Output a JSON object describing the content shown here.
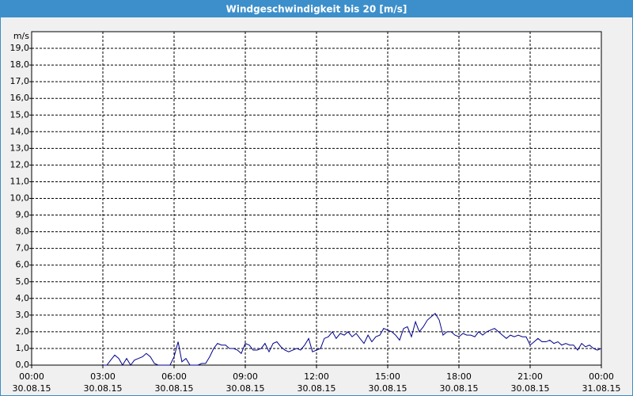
{
  "chart_data": {
    "type": "line",
    "title": "Windgeschwindigkeit bis 20 [m/s]",
    "y_unit": "m/s",
    "xlim": [
      0,
      24
    ],
    "ylim": [
      0,
      20
    ],
    "grid": true,
    "xticks": [
      {
        "value": 0,
        "label": "00:00"
      },
      {
        "value": 3,
        "label": "03:00"
      },
      {
        "value": 6,
        "label": "06:00"
      },
      {
        "value": 9,
        "label": "09:00"
      },
      {
        "value": 12,
        "label": "12:00"
      },
      {
        "value": 15,
        "label": "15:00"
      },
      {
        "value": 18,
        "label": "18:00"
      },
      {
        "value": 21,
        "label": "21:00"
      },
      {
        "value": 24,
        "label": "00:00"
      }
    ],
    "xtick_dates": [
      "30.08.15",
      "30.08.15",
      "30.08.15",
      "30.08.15",
      "30.08.15",
      "30.08.15",
      "30.08.15",
      "30.08.15",
      "31.08.15"
    ],
    "yticks": [
      {
        "value": 0,
        "label": "0,0"
      },
      {
        "value": 1,
        "label": "1,0"
      },
      {
        "value": 2,
        "label": "2,0"
      },
      {
        "value": 3,
        "label": "3,0"
      },
      {
        "value": 4,
        "label": "4,0"
      },
      {
        "value": 5,
        "label": "5,0"
      },
      {
        "value": 6,
        "label": "6,0"
      },
      {
        "value": 7,
        "label": "7,0"
      },
      {
        "value": 8,
        "label": "8,0"
      },
      {
        "value": 9,
        "label": "9,0"
      },
      {
        "value": 10,
        "label": "10,0"
      },
      {
        "value": 11,
        "label": "11,0"
      },
      {
        "value": 12,
        "label": "12,0"
      },
      {
        "value": 13,
        "label": "13,0"
      },
      {
        "value": 14,
        "label": "14,0"
      },
      {
        "value": 15,
        "label": "15,0"
      },
      {
        "value": 16,
        "label": "16,0"
      },
      {
        "value": 17,
        "label": "17,0"
      },
      {
        "value": 18,
        "label": "18,0"
      },
      {
        "value": 19,
        "label": "19,0"
      }
    ],
    "color": "#00008b",
    "x": [
      3,
      3.17,
      3.33,
      3.5,
      3.67,
      3.83,
      4,
      4.17,
      4.33,
      4.5,
      4.67,
      4.83,
      5,
      5.17,
      5.33,
      5.5,
      5.67,
      5.83,
      6,
      6.17,
      6.33,
      6.5,
      6.67,
      6.83,
      7,
      7.17,
      7.33,
      7.5,
      7.67,
      7.83,
      8,
      8.17,
      8.33,
      8.5,
      8.67,
      8.83,
      9,
      9.17,
      9.33,
      9.5,
      9.67,
      9.83,
      10,
      10.17,
      10.33,
      10.5,
      10.67,
      10.83,
      11,
      11.17,
      11.33,
      11.5,
      11.67,
      11.83,
      12,
      12.17,
      12.33,
      12.5,
      12.67,
      12.83,
      13,
      13.17,
      13.33,
      13.5,
      13.67,
      13.83,
      14,
      14.17,
      14.33,
      14.5,
      14.67,
      14.83,
      15,
      15.17,
      15.33,
      15.5,
      15.67,
      15.83,
      16,
      16.17,
      16.33,
      16.5,
      16.67,
      16.83,
      17,
      17.17,
      17.33,
      17.5,
      17.67,
      17.83,
      18,
      18.17,
      18.33,
      18.5,
      18.67,
      18.83,
      19,
      19.17,
      19.33,
      19.5,
      19.67,
      19.83,
      20,
      20.17,
      20.33,
      20.5,
      20.67,
      20.83,
      21,
      21.17,
      21.33,
      21.5,
      21.67,
      21.83,
      22,
      22.17,
      22.33,
      22.5,
      22.67,
      22.83,
      23,
      23.17,
      23.33,
      23.5,
      23.67,
      23.83,
      24
    ],
    "values": [
      0,
      0,
      0.3,
      0.6,
      0.4,
      0,
      0.4,
      0,
      0.3,
      0.4,
      0.5,
      0.7,
      0.5,
      0.1,
      0,
      0,
      0,
      0,
      0.5,
      1.4,
      0.2,
      0.4,
      0,
      0,
      0,
      0.1,
      0.1,
      0.5,
      1.0,
      1.3,
      1.2,
      1.2,
      1.0,
      1.0,
      0.9,
      0.7,
      1.3,
      1.2,
      0.9,
      0.9,
      1.0,
      1.3,
      0.8,
      1.3,
      1.4,
      1.1,
      0.9,
      0.8,
      0.9,
      1.0,
      0.9,
      1.2,
      1.6,
      0.8,
      0.9,
      1.0,
      1.6,
      1.7,
      2.0,
      1.6,
      1.9,
      1.8,
      2.0,
      1.7,
      1.9,
      1.6,
      1.3,
      1.8,
      1.4,
      1.7,
      1.8,
      2.2,
      2.1,
      2.0,
      1.8,
      1.5,
      2.2,
      2.3,
      1.7,
      2.6,
      2.0,
      2.3,
      2.7,
      2.9,
      3.1,
      2.7,
      1.8,
      2.0,
      2.0,
      1.8,
      1.7,
      1.9,
      1.8,
      1.8,
      1.7,
      2.0,
      1.8,
      2.0,
      2.1,
      2.2,
      2.0,
      1.8,
      1.6,
      1.8,
      1.7,
      1.8,
      1.7,
      1.7,
      1.2,
      1.4,
      1.6,
      1.4,
      1.4,
      1.5,
      1.3,
      1.4,
      1.2,
      1.3,
      1.2,
      1.2,
      0.9,
      1.3,
      1.1,
      1.2,
      1.0,
      0.9,
      1.0
    ]
  }
}
